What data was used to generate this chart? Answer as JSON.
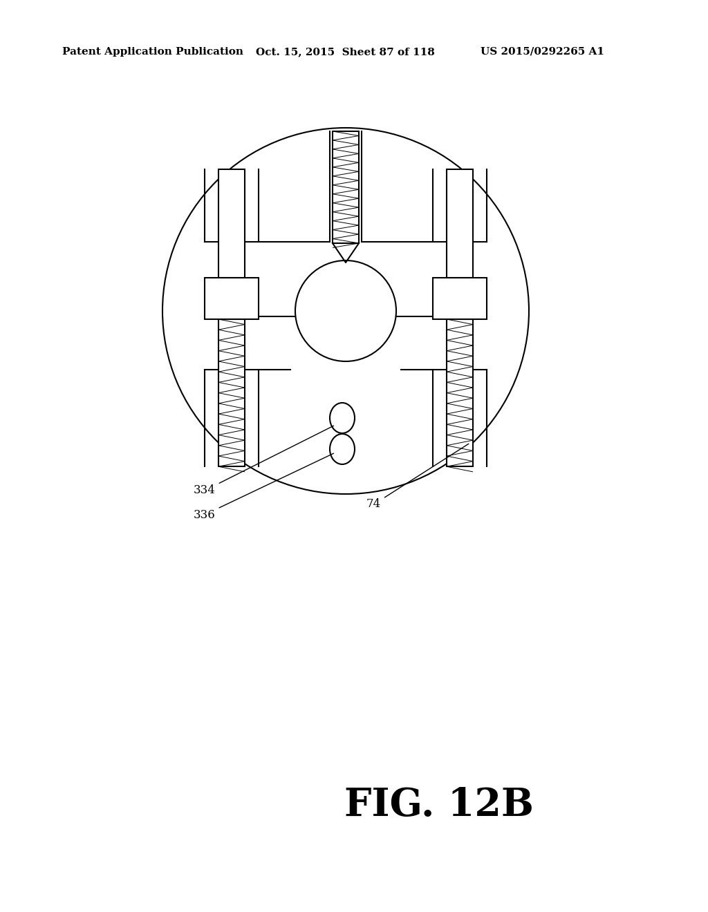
{
  "bg_color": "#ffffff",
  "line_color": "#000000",
  "title_text": "FIG. 12B",
  "title_fontsize": 40,
  "header_left": "Patent Application Publication",
  "header_mid": "Oct. 15, 2015  Sheet 87 of 118",
  "header_right": "US 2015/0292265 A1",
  "header_fontsize": 11,
  "label_334": "334",
  "label_336": "336",
  "label_74": "74",
  "label_fontsize": 12
}
